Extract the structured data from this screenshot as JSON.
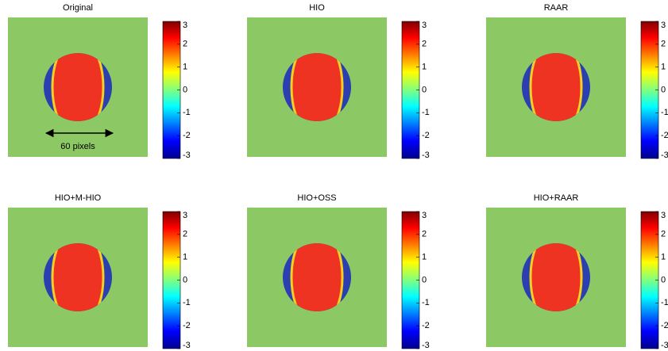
{
  "panels": [
    {
      "title": "Original"
    },
    {
      "title": "HIO"
    },
    {
      "title": "RAAR"
    },
    {
      "title": "HIO+M-HIO"
    },
    {
      "title": "HIO+OSS"
    },
    {
      "title": "HIO+RAAR"
    }
  ],
  "colorbar": {
    "lim": [
      -3,
      3
    ],
    "ticks": [
      3,
      2,
      1,
      0,
      -1,
      -2,
      -3
    ]
  },
  "annotation": "60 pixels"
}
